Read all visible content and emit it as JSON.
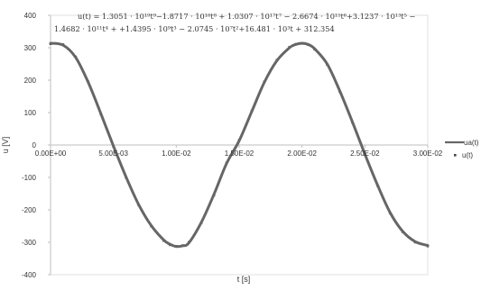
{
  "chart_data": {
    "type": "line",
    "equation_line1": "u(t) = 1.3051 · 10¹⁹t⁹−1.8717 · 10¹⁸t⁸ + 1.0307 · 10¹⁷t⁷ − 2.6674 · 10¹⁵t⁶+3.1237 · 10¹³t⁵ −",
    "equation_line2": "1.4682 · 10¹¹t⁴ +  +1.4395 · 10⁹t³ − 2.0745 · 10⁷t²+16.481 · 10³t + 312.354",
    "xlabel": "t [s]",
    "ylabel": "u [V]",
    "xlim": [
      0,
      0.03
    ],
    "ylim": [
      -400,
      400
    ],
    "x_ticks": [
      0,
      0.005,
      0.01,
      0.015,
      0.02,
      0.025,
      0.03
    ],
    "x_tick_labels": [
      "0.00E+00",
      "5.00E-03",
      "1.00E-02",
      "1.50E-02",
      "2.00E-02",
      "2.50E-02",
      "3.00E-02"
    ],
    "y_ticks": [
      -400,
      -300,
      -200,
      -100,
      0,
      100,
      200,
      300,
      400
    ],
    "y_tick_labels": [
      "-400",
      "-300",
      "-200",
      "-100",
      "0",
      "100",
      "200",
      "300",
      "400"
    ],
    "legend_placement": "right",
    "grid": false,
    "series": [
      {
        "name": "u(t)",
        "legend_label": "u(t)",
        "style": "points",
        "color": "#555555",
        "x": [
          0,
          0.001,
          0.002,
          0.003,
          0.004,
          0.005,
          0.006,
          0.007,
          0.008,
          0.009,
          0.0095,
          0.01,
          0.0105,
          0.011,
          0.012,
          0.013,
          0.014,
          0.015,
          0.016,
          0.017,
          0.018,
          0.019,
          0.0195,
          0.02,
          0.0205,
          0.021,
          0.022,
          0.023,
          0.024,
          0.025,
          0.026,
          0.027,
          0.028,
          0.029,
          0.03
        ],
        "y": [
          312,
          310,
          272,
          195,
          95,
          -5,
          -100,
          -185,
          -250,
          -295,
          -308,
          -312,
          -310,
          -300,
          -240,
          -155,
          -55,
          15,
          105,
          195,
          262,
          302,
          311,
          313,
          309,
          295,
          248,
          165,
          70,
          -30,
          -125,
          -210,
          -268,
          -300,
          -312
        ]
      },
      {
        "name": "ua(t)",
        "legend_label": "ua(t)",
        "style": "line",
        "color": "#666666",
        "x": [
          0,
          0.001,
          0.002,
          0.003,
          0.004,
          0.005,
          0.006,
          0.007,
          0.008,
          0.009,
          0.0095,
          0.01,
          0.0105,
          0.011,
          0.012,
          0.013,
          0.014,
          0.015,
          0.016,
          0.017,
          0.018,
          0.019,
          0.0195,
          0.02,
          0.0205,
          0.021,
          0.022,
          0.023,
          0.024,
          0.025,
          0.026,
          0.027,
          0.028,
          0.029,
          0.03
        ],
        "y": [
          314,
          308,
          270,
          193,
          97,
          -3,
          -98,
          -183,
          -248,
          -293,
          -306,
          -313,
          -311,
          -302,
          -238,
          -152,
          -57,
          13,
          103,
          193,
          260,
          300,
          310,
          314,
          310,
          297,
          250,
          167,
          72,
          -28,
          -123,
          -208,
          -266,
          -298,
          -310
        ]
      }
    ]
  }
}
